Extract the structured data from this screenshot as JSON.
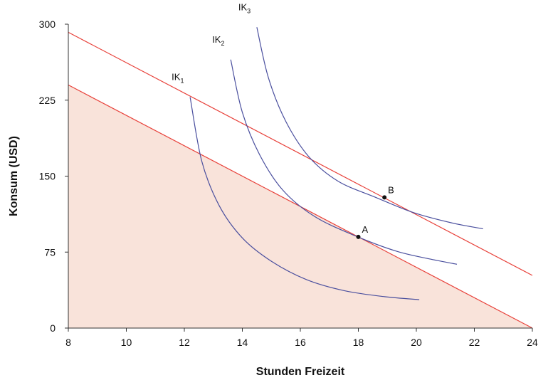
{
  "chart_data": {
    "type": "line",
    "title": "",
    "xlabel": "Stunden Freizeit",
    "ylabel": "Konsum (USD)",
    "xlim": [
      8,
      24
    ],
    "ylim": [
      0,
      300
    ],
    "x_ticks": [
      8,
      10,
      12,
      14,
      16,
      18,
      20,
      22,
      24
    ],
    "y_ticks": [
      0,
      75,
      150,
      225,
      300
    ],
    "grid": false,
    "legend": "none",
    "budget_lines": [
      {
        "x": [
          8,
          24
        ],
        "y": [
          240,
          0
        ],
        "shaded": true
      },
      {
        "x": [
          8,
          24
        ],
        "y": [
          292,
          52
        ],
        "shaded": false
      }
    ],
    "indifference_curves": [
      {
        "name": "IK",
        "sub": "1",
        "x": [
          12.2,
          12.6,
          13.2,
          14.0,
          15.0,
          16.2,
          17.5,
          18.9,
          20.1
        ],
        "y": [
          228,
          165,
          121,
          89,
          66,
          48,
          37,
          31,
          28
        ]
      },
      {
        "name": "IK",
        "sub": "2",
        "x": [
          13.6,
          14.0,
          14.6,
          15.4,
          16.5,
          17.9,
          19.3,
          20.5,
          21.4
        ],
        "y": [
          265,
          213,
          171,
          136,
          110,
          91,
          76,
          68,
          63
        ]
      },
      {
        "name": "IK",
        "sub": "3",
        "x": [
          14.5,
          14.9,
          15.5,
          16.3,
          17.3,
          18.6,
          19.9,
          21.2,
          22.3
        ],
        "y": [
          297,
          247,
          204,
          169,
          145,
          129,
          114,
          104,
          98
        ]
      }
    ],
    "points": [
      {
        "label": "A",
        "x": 18.0,
        "y": 90
      },
      {
        "label": "B",
        "x": 18.9,
        "y": 129
      }
    ],
    "colors": {
      "axis": "#333333",
      "budget_line": "#e8413a",
      "shade": "#f9e3da",
      "curve": "#4a4f9e",
      "point": "#111111"
    }
  }
}
